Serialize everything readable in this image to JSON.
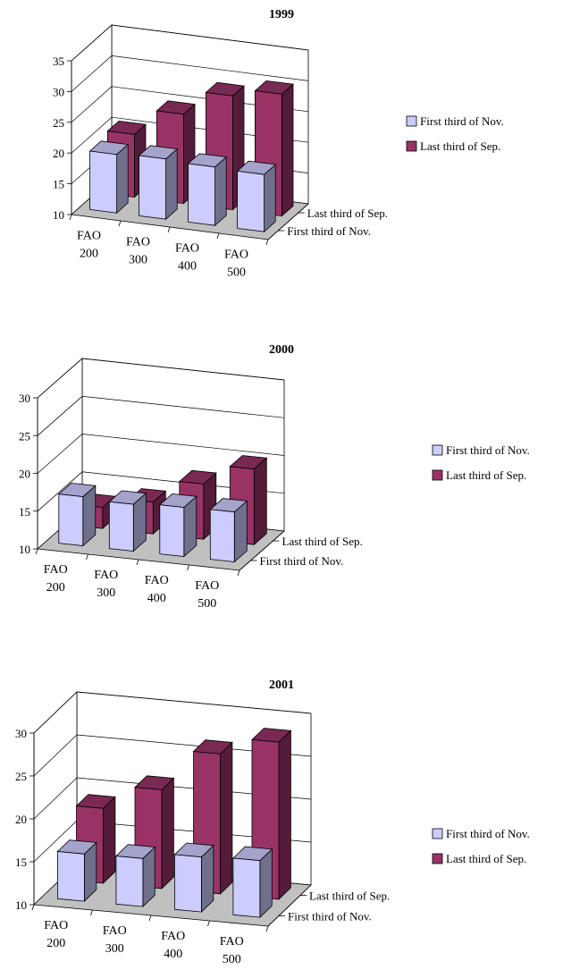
{
  "chart_data": [
    {
      "type": "bar",
      "title": "1999",
      "categories": [
        "FAO 200",
        "FAO 300",
        "FAO 400",
        "FAO 500"
      ],
      "category_lines": [
        [
          "FAO",
          "200"
        ],
        [
          "FAO",
          "300"
        ],
        [
          "FAO",
          "400"
        ],
        [
          "FAO",
          "500"
        ]
      ],
      "depth_labels": [
        "Last third of Sep.",
        "First third of Nov."
      ],
      "ylim": [
        10,
        35
      ],
      "yticks": [
        "10",
        "15",
        "20",
        "25",
        "30",
        "35"
      ],
      "grid": true,
      "legend_position": "right",
      "series": [
        {
          "name": "First third of Nov.",
          "color": "#ccccff",
          "values": [
            19.5,
            19.8,
            19.5,
            19.3
          ]
        },
        {
          "name": "Last third of Sep.",
          "color": "#993366",
          "values": [
            20.2,
            24.5,
            28.5,
            29.8
          ]
        }
      ]
    },
    {
      "type": "bar",
      "title": "2000",
      "categories": [
        "FAO 200",
        "FAO 300",
        "FAO 400",
        "FAO 500"
      ],
      "category_lines": [
        [
          "FAO",
          "200"
        ],
        [
          "FAO",
          "300"
        ],
        [
          "FAO",
          "400"
        ],
        [
          "FAO",
          "500"
        ]
      ],
      "depth_labels": [
        "Last third of Sep.",
        "First third of Nov."
      ],
      "ylim": [
        10,
        30
      ],
      "yticks": [
        "10",
        "15",
        "20",
        "25",
        "30"
      ],
      "grid": true,
      "legend_position": "right",
      "series": [
        {
          "name": "First third of Nov.",
          "color": "#ccccff",
          "values": [
            16.5,
            16.2,
            16.5,
            16.6
          ]
        },
        {
          "name": "Last third of Sep.",
          "color": "#993366",
          "values": [
            12.8,
            14.2,
            17.3,
            20.0
          ]
        }
      ]
    },
    {
      "type": "bar",
      "title": "2001",
      "categories": [
        "FAO 200",
        "FAO 300",
        "FAO 400",
        "FAO 500"
      ],
      "category_lines": [
        [
          "FAO",
          "200"
        ],
        [
          "FAO",
          "300"
        ],
        [
          "FAO",
          "400"
        ],
        [
          "FAO",
          "500"
        ]
      ],
      "depth_labels": [
        "Last third of Sep.",
        "First third of Nov."
      ],
      "ylim": [
        10,
        30
      ],
      "yticks": [
        "10",
        "15",
        "20",
        "25",
        "30"
      ],
      "grid": true,
      "legend_position": "right",
      "series": [
        {
          "name": "First third of Nov.",
          "color": "#ccccff",
          "values": [
            15.5,
            15.6,
            16.4,
            16.6
          ]
        },
        {
          "name": "Last third of Sep.",
          "color": "#993366",
          "values": [
            18.7,
            21.5,
            26.3,
            28.3
          ]
        }
      ]
    }
  ]
}
